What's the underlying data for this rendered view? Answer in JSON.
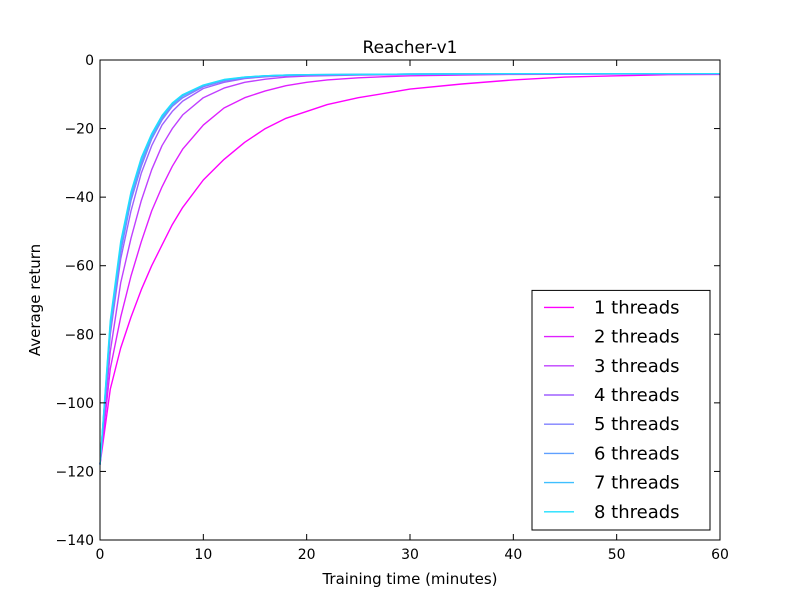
{
  "chart_data": {
    "type": "line",
    "title": "Reacher-v1",
    "xlabel": "Training time (minutes)",
    "ylabel": "Average return",
    "xlim": [
      0,
      60
    ],
    "ylim": [
      -140,
      0
    ],
    "xticks": [
      0,
      10,
      20,
      30,
      40,
      50,
      60
    ],
    "yticks": [
      0,
      -20,
      -40,
      -60,
      -80,
      -100,
      -120,
      -140
    ],
    "xtick_labels": [
      "0",
      "10",
      "20",
      "30",
      "40",
      "50",
      "60"
    ],
    "ytick_labels": [
      "0",
      "−20",
      "−40",
      "−60",
      "−80",
      "−100",
      "−120",
      "−140"
    ],
    "grid": false,
    "legend_position": "lower-right",
    "series": [
      {
        "name": "1 threads",
        "color": "#ff00ff",
        "x": [
          0,
          1,
          2,
          3,
          4,
          5,
          6,
          7,
          8,
          10,
          12,
          14,
          16,
          18,
          20,
          22,
          25,
          28,
          30,
          35,
          40,
          45,
          50,
          55,
          60
        ],
        "y": [
          -118,
          -96,
          -84,
          -75,
          -67,
          -60,
          -54,
          -48,
          -43,
          -35,
          -29,
          -24,
          -20,
          -17,
          -15,
          -13,
          -11,
          -9.5,
          -8.5,
          -7,
          -5.8,
          -5,
          -4.6,
          -4.3,
          -4.2
        ]
      },
      {
        "name": "2 threads",
        "color": "#df20ff",
        "x": [
          0,
          1,
          2,
          3,
          4,
          5,
          6,
          7,
          8,
          10,
          12,
          14,
          16,
          18,
          20,
          22,
          25,
          28,
          30,
          35,
          40,
          50,
          60
        ],
        "y": [
          -118,
          -90,
          -75,
          -63,
          -53,
          -44,
          -37,
          -31,
          -26,
          -19,
          -14,
          -11,
          -9,
          -7.5,
          -6.5,
          -5.8,
          -5.2,
          -4.8,
          -4.6,
          -4.4,
          -4.2,
          -4.1,
          -4
        ]
      },
      {
        "name": "3 threads",
        "color": "#bf40ff",
        "x": [
          0,
          1,
          2,
          3,
          4,
          5,
          6,
          7,
          8,
          10,
          12,
          14,
          16,
          18,
          20,
          25,
          30,
          40,
          50,
          60
        ],
        "y": [
          -118,
          -85,
          -65,
          -52,
          -41,
          -32,
          -25,
          -20,
          -16,
          -11,
          -8.2,
          -6.5,
          -5.6,
          -5,
          -4.7,
          -4.4,
          -4.2,
          -4.1,
          -4,
          -4
        ]
      },
      {
        "name": "4 threads",
        "color": "#9f60ff",
        "x": [
          0,
          1,
          2,
          3,
          4,
          5,
          6,
          7,
          8,
          10,
          12,
          14,
          16,
          18,
          20,
          25,
          30,
          40,
          50,
          60
        ],
        "y": [
          -118,
          -80,
          -58,
          -44,
          -33,
          -25,
          -19,
          -15,
          -12,
          -8.3,
          -6.5,
          -5.4,
          -4.9,
          -4.6,
          -4.4,
          -4.2,
          -4.1,
          -4,
          -4,
          -4
        ]
      },
      {
        "name": "5 threads",
        "color": "#7f80ff",
        "x": [
          0,
          1,
          2,
          3,
          4,
          5,
          6,
          7,
          8,
          10,
          12,
          14,
          16,
          18,
          20,
          25,
          30,
          40,
          50,
          60
        ],
        "y": [
          -118,
          -79,
          -56,
          -41,
          -31,
          -23,
          -17.5,
          -13.5,
          -11,
          -7.8,
          -6.1,
          -5.2,
          -4.7,
          -4.5,
          -4.3,
          -4.2,
          -4.1,
          -4,
          -4,
          -4
        ]
      },
      {
        "name": "6 threads",
        "color": "#5fa0ff",
        "x": [
          0,
          1,
          2,
          3,
          4,
          5,
          6,
          7,
          8,
          10,
          12,
          14,
          16,
          18,
          20,
          25,
          30,
          40,
          50,
          60
        ],
        "y": [
          -118,
          -78,
          -55,
          -40,
          -30,
          -22.5,
          -17,
          -13,
          -10.5,
          -7.5,
          -5.9,
          -5.1,
          -4.6,
          -4.4,
          -4.3,
          -4.2,
          -4.1,
          -4,
          -4,
          -4
        ]
      },
      {
        "name": "7 threads",
        "color": "#3fbfff",
        "x": [
          0,
          1,
          2,
          3,
          4,
          5,
          6,
          7,
          8,
          10,
          12,
          14,
          16,
          18,
          20,
          25,
          30,
          40,
          50,
          60
        ],
        "y": [
          -118,
          -77,
          -54,
          -39,
          -29,
          -22,
          -16.5,
          -12.8,
          -10.3,
          -7.4,
          -5.8,
          -5,
          -4.6,
          -4.4,
          -4.3,
          -4.2,
          -4.1,
          -4,
          -4,
          -4
        ]
      },
      {
        "name": "8 threads",
        "color": "#1fdfff",
        "x": [
          0,
          1,
          2,
          3,
          4,
          5,
          6,
          7,
          8,
          10,
          12,
          14,
          16,
          18,
          20,
          25,
          30,
          40,
          50,
          60
        ],
        "y": [
          -118,
          -76,
          -53,
          -38.5,
          -28.5,
          -21.5,
          -16.2,
          -12.5,
          -10.1,
          -7.3,
          -5.7,
          -5,
          -4.6,
          -4.4,
          -4.3,
          -4.2,
          -4.1,
          -4,
          -4,
          -4
        ]
      }
    ]
  }
}
